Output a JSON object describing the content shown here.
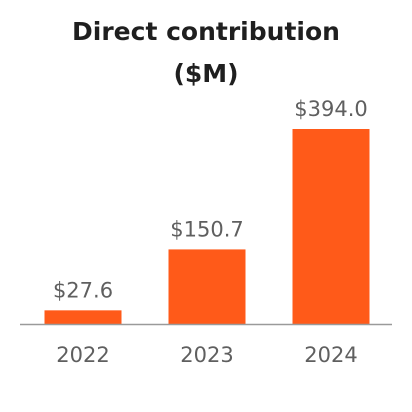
{
  "chart_data": {
    "type": "bar",
    "title": "Direct contribution",
    "subtitle": "($M)",
    "categories": [
      "2022",
      "2023",
      "2024"
    ],
    "values": [
      27.6,
      150.7,
      394.0
    ],
    "value_labels": [
      "$27.6",
      "$150.7",
      "$394.0"
    ],
    "xlabel": "",
    "ylabel": "",
    "ylim": [
      0,
      394.0
    ],
    "grid": false,
    "legend": "none",
    "bar_color": "#FF5A19",
    "axis_color": "#9A9A9A"
  }
}
